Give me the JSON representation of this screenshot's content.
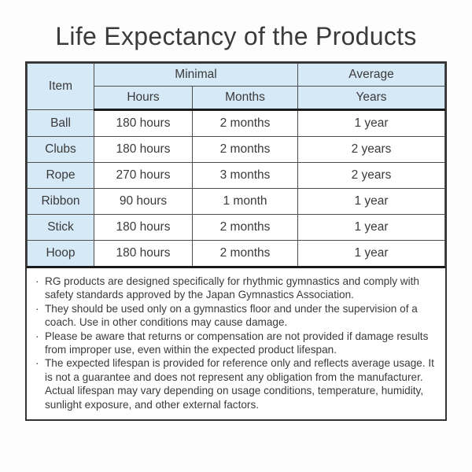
{
  "page": {
    "title": "Life Expectancy of the Products"
  },
  "colors": {
    "header_fill": "#d6e9f7",
    "border_dark": "#333333",
    "separator_black": "#1a1a1a",
    "text": "#3a3a3a",
    "cell_background": "#ffffff"
  },
  "table": {
    "header": {
      "item": "Item",
      "minimal": "Minimal",
      "average": "Average",
      "sub": [
        "Hours",
        "Months",
        "Years"
      ]
    },
    "rows": [
      [
        "Ball",
        "180 hours",
        "2 months",
        "1 year"
      ],
      [
        "Clubs",
        "180 hours",
        "2 months",
        "2 years"
      ],
      [
        "Rope",
        "270 hours",
        "3 months",
        "2 years"
      ],
      [
        "Ribbon",
        "90 hours",
        "1 month",
        "1 year"
      ],
      [
        "Stick",
        "180 hours",
        "2 months",
        "1 year"
      ],
      [
        "Hoop",
        "180 hours",
        "2 months",
        "1 year"
      ]
    ]
  },
  "notes": {
    "items": [
      "RG products are designed specifically for rhythmic gymnastics and comply with safety standards approved by the Japan Gymnastics Association.",
      "They should be used only on a gymnastics floor and under the supervision of a coach. Use in other conditions may cause damage.",
      "Please be aware that returns or compensation are not provided if damage results from improper use, even within the expected product lifespan.",
      "The expected lifespan is provided for reference only and reflects average usage. It is not a guarantee and does not represent any obligation from the manufacturer. Actual lifespan may vary depending on usage conditions, temperature, humidity, sunlight exposure, and other external factors."
    ]
  }
}
